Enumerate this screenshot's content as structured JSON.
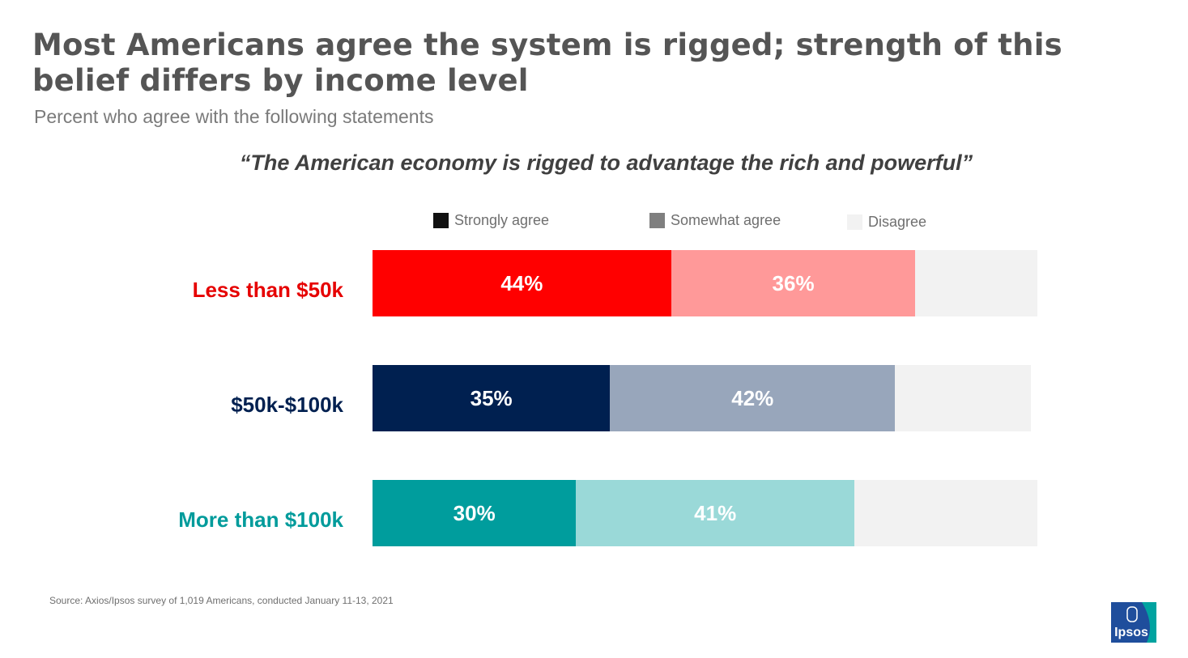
{
  "header": {
    "title": "Most Americans agree the system is rigged; strength of this belief differs by income level",
    "subtitle": "Percent who agree with the following statements"
  },
  "chart_data": {
    "type": "bar",
    "orientation": "horizontal",
    "stacked": true,
    "title": "“The American economy is rigged to advantage the rich and powerful”",
    "categories": [
      "Less than $50k",
      "$50k-$100k",
      "More than $100k"
    ],
    "series": [
      {
        "name": "Strongly agree",
        "values": [
          44,
          35,
          30
        ]
      },
      {
        "name": "Somewhat agree",
        "values": [
          36,
          42,
          41
        ]
      },
      {
        "name": "Disagree",
        "values": [
          18,
          20,
          27
        ]
      }
    ],
    "data_labels": [
      [
        "44%",
        "36%"
      ],
      [
        "35%",
        "42%"
      ],
      [
        "30%",
        "41%"
      ]
    ],
    "xlim": [
      0,
      100
    ],
    "legend": [
      "Strongly agree",
      "Somewhat agree",
      "Disagree"
    ],
    "legend_position": "top",
    "grid": false
  },
  "legend_colors": [
    "#111111",
    "#7f7f7f",
    "#f2f2f2"
  ],
  "row_colors": [
    {
      "label": "#e60000",
      "strong": "#ff0000",
      "somewhat": "#ff9999",
      "disagree": "#f2f2f2"
    },
    {
      "label": "#002050",
      "strong": "#002050",
      "somewhat": "#98a6bb",
      "disagree": "#f2f2f2"
    },
    {
      "label": "#009b9b",
      "strong": "#009d9d",
      "somewhat": "#9ad9d8",
      "disagree": "#f2f2f2"
    }
  ],
  "footer": {
    "source": "Source: Axios/Ipsos survey of 1,019 Americans, conducted January 11-13, 2021",
    "logo_text": "Ipsos"
  }
}
